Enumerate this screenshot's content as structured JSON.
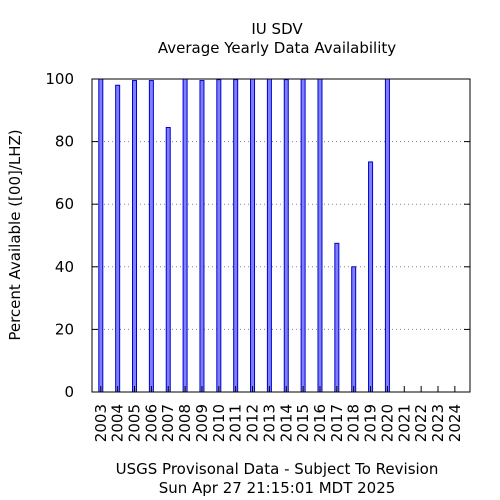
{
  "chart_data": {
    "type": "bar",
    "title": "IU SDV",
    "subtitle": "Average Yearly Data Availability",
    "ylabel": "Percent Available ([00]/LHZ)",
    "xlabel": "USGS Provisonal Data - Subject To Revision",
    "footer": "Sun Apr 27 21:15:01 MDT 2025",
    "categories": [
      "2003",
      "2004",
      "2005",
      "2006",
      "2007",
      "2008",
      "2009",
      "2010",
      "2011",
      "2012",
      "2013",
      "2014",
      "2015",
      "2016",
      "2017",
      "2018",
      "2019",
      "2020",
      "2021",
      "2022",
      "2023",
      "2024"
    ],
    "values": [
      100,
      98,
      99.5,
      99.5,
      84.5,
      100,
      99.5,
      99.8,
      99.8,
      100,
      100,
      99.8,
      100,
      100,
      47.5,
      40,
      73.5,
      100,
      0,
      0,
      0,
      0
    ],
    "ylim": [
      0,
      100
    ],
    "yticks": [
      "0",
      "20",
      "40",
      "60",
      "80",
      "100"
    ],
    "grid": true,
    "colors": {
      "bar_fill": "#8080ff",
      "bar_stroke": "#0000cc",
      "grid": "#888888"
    }
  }
}
